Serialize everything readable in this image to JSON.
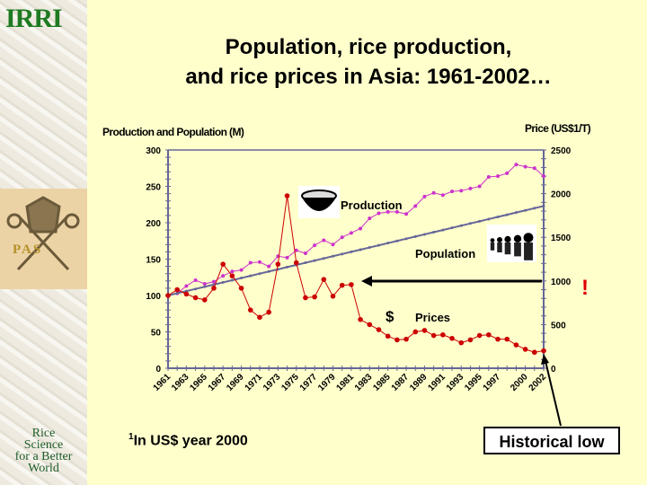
{
  "logos": {
    "irri": "IRRI",
    "pas": "PAS",
    "tagline": [
      "Rice",
      "Science",
      "for a Better",
      "World"
    ]
  },
  "title_line1": "Population, rice production,",
  "title_line2": "and rice prices in Asia: 1961-2002…",
  "footnote_sup": "1",
  "footnote": "In US$ year 2000",
  "callout": "Historical low",
  "exclamation": "!",
  "dollar_sign": "$",
  "colors": {
    "production": "#cc33cc",
    "population": "#666699",
    "prices": "#cc0000",
    "axis": "#666699"
  },
  "chart_data": {
    "type": "line",
    "title": "Population, rice production, and rice prices in Asia: 1961-2002…",
    "ylabel": "Production and Population (M)",
    "y2label": "Price (US$1/T)",
    "ylim": [
      0,
      300
    ],
    "y2lim": [
      0,
      2500
    ],
    "yticks": [
      "0",
      "50",
      "100",
      "150",
      "200",
      "250",
      "300"
    ],
    "y2ticks": [
      "0",
      "500",
      "1000",
      "1500",
      "2000",
      "2500"
    ],
    "xtick_labels": [
      "1961",
      "1963",
      "1965",
      "1967",
      "1969",
      "1971",
      "1973",
      "1975",
      "1977",
      "1979",
      "1981",
      "1983",
      "1985",
      "1987",
      "1989",
      "1991",
      "1993",
      "1995",
      "1997",
      "2000",
      "2002"
    ],
    "x": [
      1961,
      1962,
      1963,
      1964,
      1965,
      1966,
      1967,
      1968,
      1969,
      1970,
      1971,
      1972,
      1973,
      1974,
      1975,
      1976,
      1977,
      1978,
      1979,
      1980,
      1981,
      1982,
      1983,
      1984,
      1985,
      1986,
      1987,
      1988,
      1989,
      1990,
      1991,
      1992,
      1993,
      1994,
      1995,
      1996,
      1997,
      1998,
      1999,
      2000,
      2001,
      2002
    ],
    "series": [
      {
        "name": "Production",
        "axis": "left",
        "values": [
          100,
          103,
          113,
          121,
          116,
          119,
          127,
          133,
          135,
          145,
          146,
          140,
          154,
          152,
          162,
          158,
          169,
          176,
          170,
          180,
          186,
          192,
          206,
          213,
          215,
          215,
          212,
          223,
          236,
          241,
          238,
          243,
          244,
          247,
          250,
          263,
          264,
          268,
          280,
          277,
          275,
          264
        ]
      },
      {
        "name": "Population",
        "axis": "left",
        "values": [
          100,
          103,
          106,
          109,
          112,
          115,
          118,
          121,
          124,
          127,
          130,
          133,
          136,
          139,
          142,
          145,
          148,
          151,
          154,
          157,
          160,
          163,
          166,
          169,
          172,
          175,
          178,
          181,
          184,
          187,
          190,
          193,
          196,
          199,
          202,
          205,
          208,
          211,
          214,
          217,
          220,
          223
        ]
      },
      {
        "name": "Prices",
        "axis": "right",
        "values": [
          833,
          900,
          850,
          808,
          783,
          917,
          1192,
          1058,
          917,
          667,
          583,
          642,
          1192,
          1975,
          1208,
          808,
          817,
          1017,
          825,
          950,
          958,
          558,
          500,
          442,
          367,
          325,
          333,
          417,
          433,
          375,
          383,
          342,
          292,
          325,
          375,
          383,
          333,
          333,
          267,
          217,
          183,
          200
        ]
      }
    ],
    "annotations": [
      "Production",
      "Population",
      "Prices",
      "Historical low"
    ],
    "legend": "inline labels"
  }
}
